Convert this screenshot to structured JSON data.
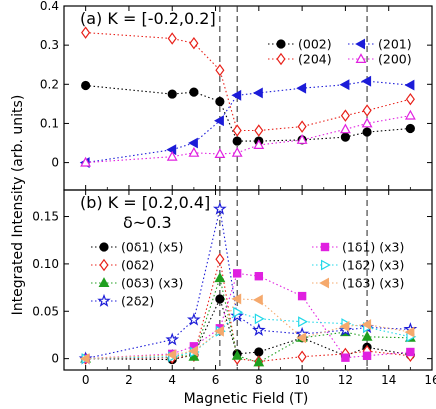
{
  "chart_data": [
    {
      "panel": "a",
      "type": "scatter",
      "connected": "dotted",
      "title": "(a) K = [-0.2,0.2]",
      "xlim": [
        -1,
        16
      ],
      "ylim": [
        -0.07,
        0.4
      ],
      "xticks": [
        0,
        2,
        4,
        6,
        8,
        10,
        12,
        14,
        16
      ],
      "yticks": [
        0,
        0.1,
        0.2,
        0.3,
        0.4
      ],
      "ytick_labels": [
        "0",
        "0.1",
        "0.2",
        "0.3",
        "0.4"
      ],
      "legend_position": "top-right",
      "legend_columns": 2,
      "series": [
        {
          "name": "(002)",
          "color": "#000000",
          "marker": "circle",
          "filled": true,
          "x": [
            0,
            4,
            5,
            6.2,
            7,
            8,
            10,
            12,
            13,
            15
          ],
          "y": [
            0.197,
            0.175,
            0.18,
            0.156,
            0.055,
            0.055,
            0.058,
            0.065,
            0.078,
            0.087
          ]
        },
        {
          "name": "(204)",
          "color": "#e8211a",
          "marker": "diamond",
          "filled": false,
          "x": [
            0,
            4,
            5,
            6.2,
            7,
            8,
            10,
            12,
            13,
            15
          ],
          "y": [
            0.332,
            0.317,
            0.305,
            0.236,
            0.082,
            0.082,
            0.092,
            0.12,
            0.133,
            0.162
          ]
        },
        {
          "name": "(201)",
          "color": "#1c1cd8",
          "marker": "triangle-left",
          "filled": true,
          "x": [
            0,
            4,
            5,
            6.2,
            7,
            8,
            10,
            12,
            13,
            15
          ],
          "y": [
            0.0,
            0.033,
            0.05,
            0.107,
            0.172,
            0.178,
            0.19,
            0.199,
            0.208,
            0.198
          ]
        },
        {
          "name": "(200)",
          "color": "#e020e0",
          "marker": "triangle-up",
          "filled": false,
          "x": [
            0,
            4,
            5,
            6.2,
            7,
            8,
            10,
            12,
            13,
            15
          ],
          "y": [
            0.0,
            0.015,
            0.025,
            0.022,
            0.025,
            0.045,
            0.058,
            0.085,
            0.1,
            0.12
          ]
        }
      ]
    },
    {
      "panel": "b",
      "type": "scatter",
      "connected": "dotted",
      "title": "(b) K = [0.2,0.4]",
      "annotation": "δ~0.3",
      "xlim": [
        -1,
        16
      ],
      "ylim": [
        -0.012,
        0.178
      ],
      "xticks": [
        0,
        2,
        4,
        6,
        8,
        10,
        12,
        14,
        16
      ],
      "yticks": [
        0,
        0.05,
        0.1,
        0.15
      ],
      "ytick_labels": [
        "0",
        "0.05",
        "0.10",
        "0.15"
      ],
      "xlabel": "Magnetic Field (T)",
      "legend_position": "left and right",
      "series": [
        {
          "name": "(0δ1) (x5)",
          "color": "#000000",
          "marker": "circle",
          "filled": true,
          "x": [
            0,
            4,
            5,
            6.2,
            7,
            8,
            10,
            12,
            13,
            15
          ],
          "y": [
            0.0,
            -0.001,
            0.004,
            0.063,
            0.005,
            0.007,
            0.022,
            0.003,
            0.012,
            0.004
          ]
        },
        {
          "name": "(0δ2)",
          "color": "#e8211a",
          "marker": "diamond",
          "filled": false,
          "x": [
            0,
            4,
            5,
            6.2,
            7,
            8,
            10,
            12,
            13,
            15
          ],
          "y": [
            0.0,
            0.001,
            0.003,
            0.105,
            0.0,
            -0.003,
            0.002,
            0.005,
            0.008,
            0.003
          ]
        },
        {
          "name": "(0δ3) (x3)",
          "color": "#1f9f1f",
          "marker": "triangle-up",
          "filled": true,
          "x": [
            0,
            4,
            5,
            6.2,
            7,
            8,
            10,
            12,
            13,
            15
          ],
          "y": [
            0.0,
            0.004,
            0.002,
            0.085,
            0.003,
            -0.004,
            0.022,
            0.028,
            0.023,
            0.022
          ]
        },
        {
          "name": "(2δ2)",
          "color": "#1c1cd8",
          "marker": "star",
          "filled": false,
          "x": [
            0,
            4,
            5,
            6.2,
            7,
            8,
            10,
            12,
            13,
            15
          ],
          "y": [
            0.0,
            0.02,
            0.041,
            0.158,
            0.045,
            0.03,
            0.026,
            0.03,
            0.033,
            0.031
          ]
        },
        {
          "name": "(1δ1) (x3)",
          "color": "#e020e0",
          "marker": "square",
          "filled": true,
          "x": [
            0,
            4,
            5,
            6.2,
            7,
            8,
            10,
            12,
            13,
            15
          ],
          "y": [
            0.0,
            0.005,
            0.013,
            0.032,
            0.09,
            0.087,
            0.066,
            0.001,
            0.003,
            0.007
          ]
        },
        {
          "name": "(1δ2) (x3)",
          "color": "#22d8e8",
          "marker": "triangle-right",
          "filled": false,
          "x": [
            0,
            4,
            5,
            6.2,
            7,
            8,
            10,
            12,
            13,
            15
          ],
          "y": [
            0.0,
            0.002,
            0.007,
            0.029,
            0.049,
            0.042,
            0.039,
            0.037,
            0.033,
            0.023
          ]
        },
        {
          "name": "(1δ3) (x3)",
          "color": "#f5a96d",
          "marker": "triangle-left",
          "filled": true,
          "x": [
            0,
            4,
            5,
            6.2,
            7,
            8,
            10,
            12,
            13,
            15
          ],
          "y": [
            0.0,
            0.004,
            0.008,
            0.029,
            0.063,
            0.062,
            0.022,
            0.034,
            0.036,
            0.028
          ]
        }
      ]
    }
  ],
  "shared": {
    "ylabel": "Integrated Intensity (arb. units)",
    "vlines_x": [
      6.2,
      7,
      13
    ]
  }
}
